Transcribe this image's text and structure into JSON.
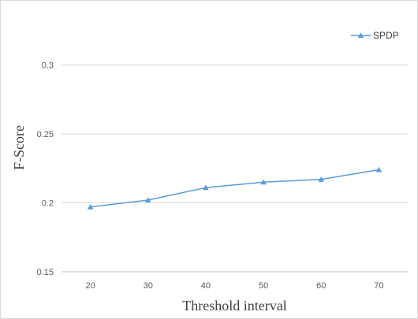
{
  "chart_data": {
    "type": "line",
    "title": "",
    "xlabel": "Threshold interval",
    "ylabel": "F-Score",
    "categories": [
      "20",
      "30",
      "40",
      "50",
      "60",
      "70"
    ],
    "y_ticks": [
      "0.15",
      "0.2",
      "0.25",
      "0.3"
    ],
    "ylim": [
      0.15,
      0.33
    ],
    "grid": "horizontal",
    "legend_position": "top-right",
    "series": [
      {
        "name": "SPDP",
        "values": [
          0.197,
          0.202,
          0.211,
          0.215,
          0.217,
          0.224
        ],
        "color": "#5B9BD5",
        "marker": "triangle"
      }
    ]
  }
}
